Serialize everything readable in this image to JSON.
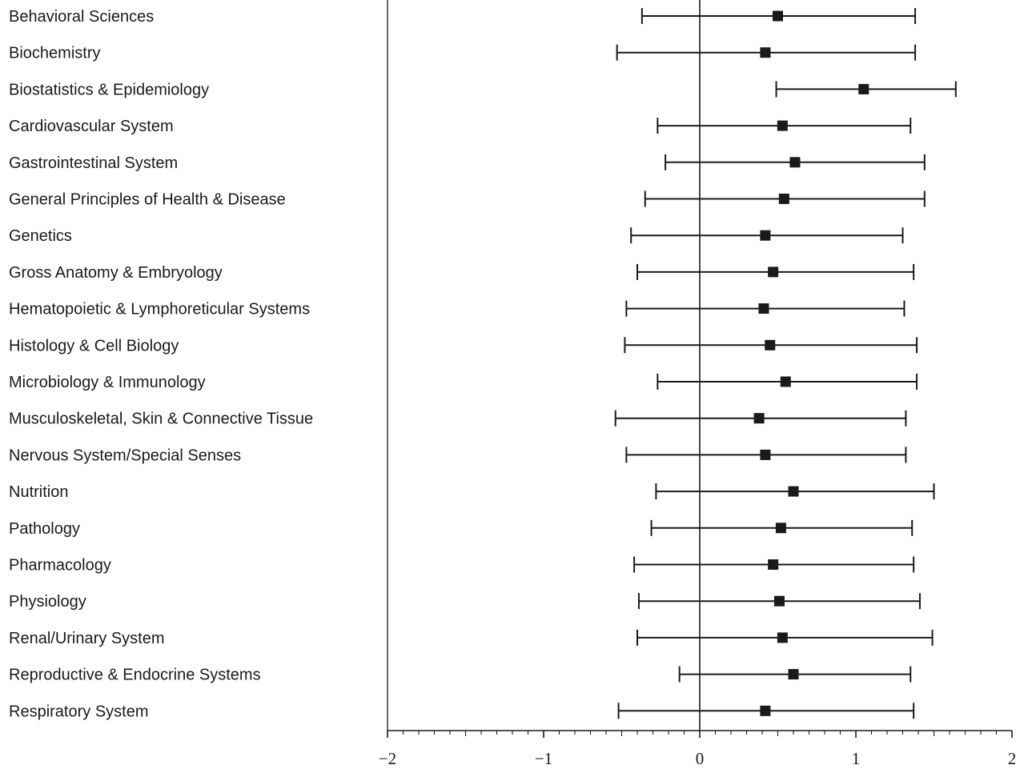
{
  "chart_data": {
    "type": "forest",
    "title": "",
    "xlabel": "",
    "ylabel": "",
    "xlim": [
      -2,
      2
    ],
    "reference_line": 0,
    "grid": false,
    "legend": "none",
    "x_ticks": [
      -2,
      -1,
      0,
      1,
      2
    ],
    "x_tick_labels": [
      "−2",
      "−1",
      "0",
      "1",
      "2"
    ],
    "categories": [
      "Behavioral Sciences",
      "Biochemistry",
      "Biostatistics & Epidemiology",
      "Cardiovascular System",
      "Gastrointestinal System",
      "General Principles of Health & Disease",
      "Genetics",
      "Gross Anatomy & Embryology",
      "Hematopoietic & Lymphoreticular Systems",
      "Histology & Cell Biology",
      "Microbiology & Immunology",
      "Musculoskeletal, Skin & Connective Tissue",
      "Nervous System/Special Senses",
      "Nutrition",
      "Pathology",
      "Pharmacology",
      "Physiology",
      "Renal/Urinary System",
      "Reproductive & Endocrine Systems",
      "Respiratory System"
    ],
    "estimates": [
      0.5,
      0.42,
      1.05,
      0.53,
      0.61,
      0.54,
      0.42,
      0.47,
      0.41,
      0.45,
      0.55,
      0.38,
      0.42,
      0.6,
      0.52,
      0.47,
      0.51,
      0.53,
      0.6,
      0.42
    ],
    "lower": [
      -0.37,
      -0.53,
      0.49,
      -0.27,
      -0.22,
      -0.35,
      -0.44,
      -0.4,
      -0.47,
      -0.48,
      -0.27,
      -0.54,
      -0.47,
      -0.28,
      -0.31,
      -0.42,
      -0.39,
      -0.4,
      -0.13,
      -0.52
    ],
    "upper": [
      1.38,
      1.38,
      1.64,
      1.35,
      1.44,
      1.44,
      1.3,
      1.37,
      1.31,
      1.39,
      1.39,
      1.32,
      1.32,
      1.5,
      1.36,
      1.37,
      1.41,
      1.49,
      1.35,
      1.37
    ],
    "colors": {
      "marker": "#1a1a1a",
      "line": "#1a1a1a",
      "text": "#1a1a1a"
    }
  }
}
